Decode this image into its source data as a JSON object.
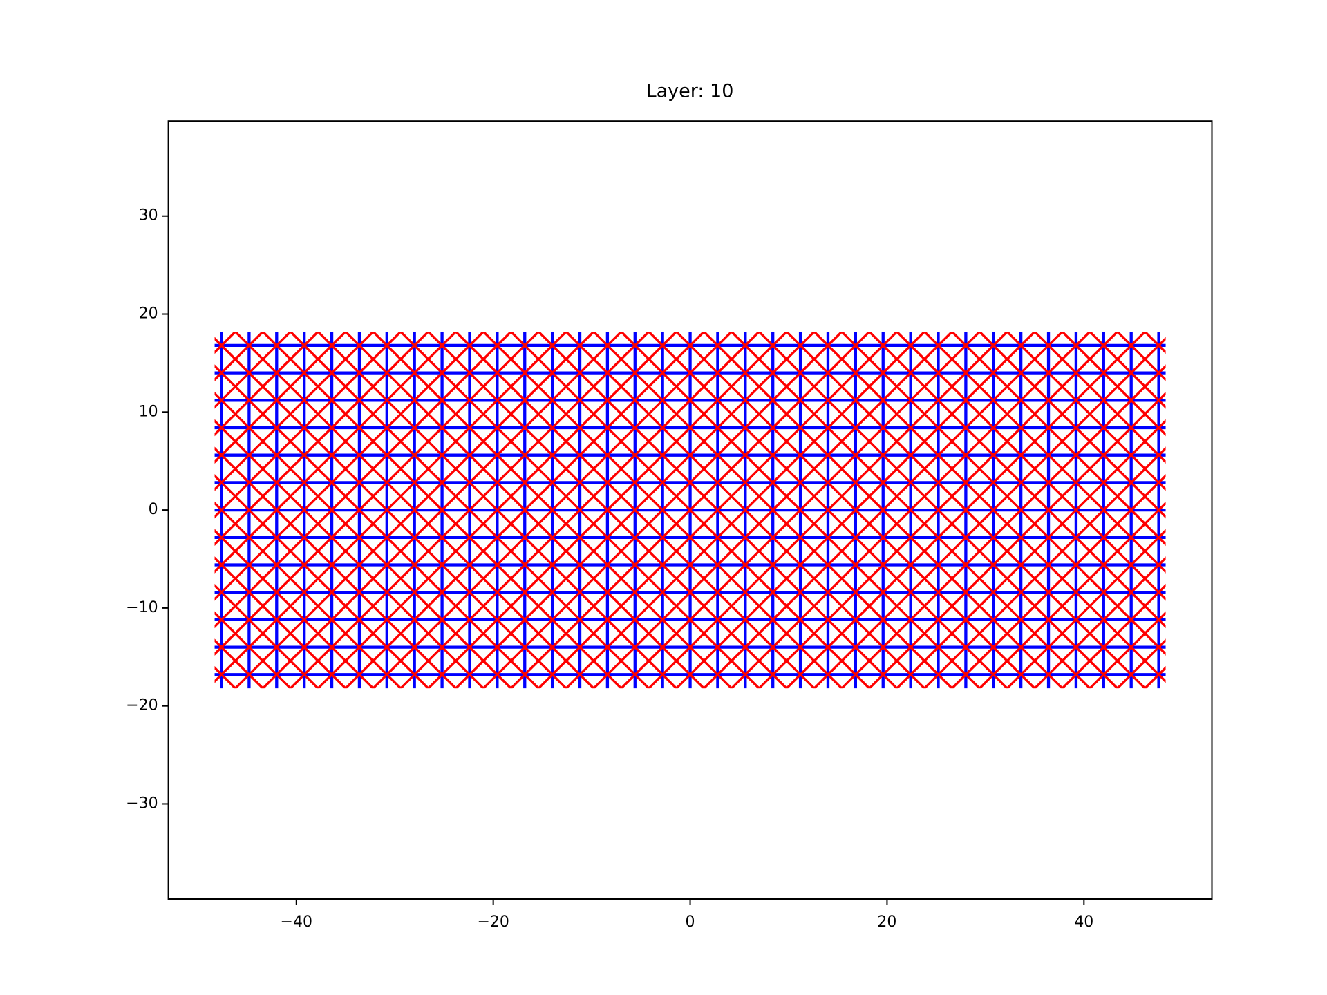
{
  "chart_data": {
    "type": "lattice",
    "title": "Layer: 10",
    "columns": [
      -47.6,
      -44.8,
      -42,
      -39.2,
      -36.4,
      -33.6,
      -30.8,
      -28,
      -25.2,
      -22.4,
      -19.6,
      -16.8,
      -14,
      -11.2,
      -8.4,
      -5.6,
      -2.8,
      0,
      2.8,
      5.6,
      8.4,
      11.2,
      14,
      16.8,
      19.6,
      22.4,
      25.2,
      28,
      30.8,
      33.6,
      36.4,
      39.2,
      42,
      44.8,
      47.6
    ],
    "rows": [
      -16.8,
      -14,
      -11.2,
      -8.4,
      -5.6,
      -2.8,
      0,
      2.8,
      5.6,
      8.4,
      11.2,
      14,
      16.8
    ],
    "xspan": [
      -48.3,
      48.3
    ],
    "yspan": [
      -18.2,
      18.2
    ],
    "grid_color": "#0000ff",
    "cross_color": "#ff0000",
    "xlim": [
      -53,
      53
    ],
    "ylim": [
      -39.7,
      39.7
    ],
    "xticks": [
      {
        "value": -40,
        "label": "−40"
      },
      {
        "value": -20,
        "label": "−20"
      },
      0,
      20,
      40
    ],
    "yticks": [
      {
        "value": -30,
        "label": "−30"
      },
      {
        "value": -20,
        "label": "−20"
      },
      {
        "value": -10,
        "label": "−10"
      },
      0,
      10,
      20,
      30
    ]
  }
}
